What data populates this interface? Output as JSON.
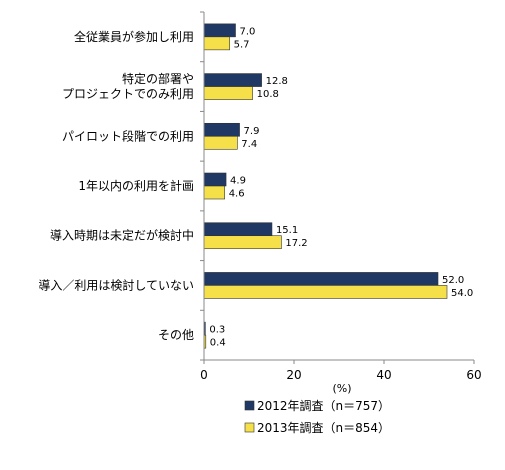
{
  "chart_data": {
    "type": "bar",
    "orientation": "horizontal",
    "categories": [
      [
        "全従業員が参加し利用"
      ],
      [
        "特定の部署や",
        "プロジェクトでのみ利用"
      ],
      [
        "パイロット段階での利用"
      ],
      [
        "1年以内の利用を計画"
      ],
      [
        "導入時期は未定だが検討中"
      ],
      [
        "導入／利用は検討していない"
      ],
      [
        "その他"
      ]
    ],
    "series": [
      {
        "name": "2012年調査（n＝757）",
        "color": "#1f3864",
        "values": [
          7.0,
          12.8,
          7.9,
          4.9,
          15.1,
          52.0,
          0.3
        ]
      },
      {
        "name": "2013年調査（n＝854）",
        "color": "#f5e04a",
        "values": [
          5.7,
          10.8,
          7.4,
          4.6,
          17.2,
          54.0,
          0.4
        ]
      }
    ],
    "xlim": [
      0,
      60
    ],
    "xticks": [
      0,
      20,
      40,
      60
    ],
    "xlabel": "(%)",
    "legend_position": "bottom",
    "grid": false
  }
}
